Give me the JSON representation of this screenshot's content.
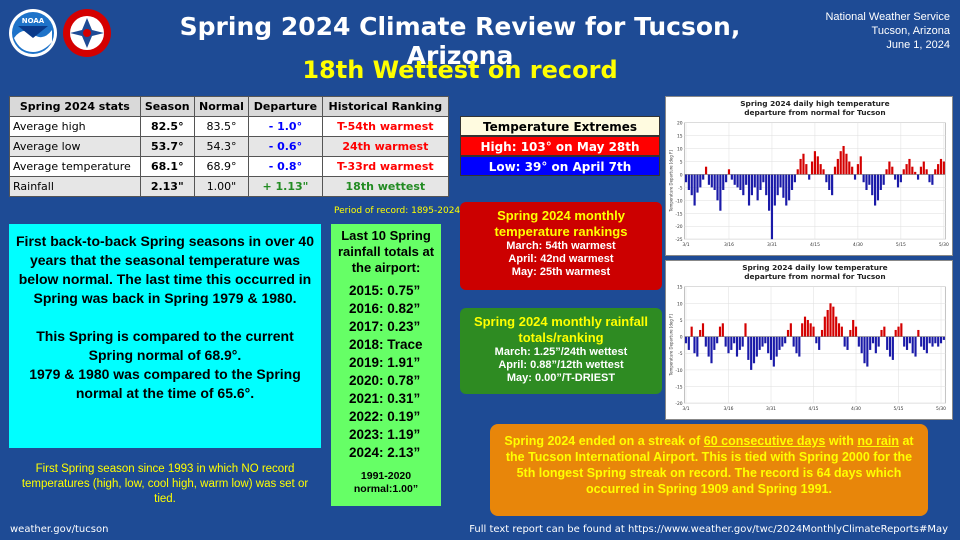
{
  "header": {
    "title": "Spring 2024 Climate Review for Tucson, Arizona",
    "subtitle": "18th Wettest on record",
    "org_line1": "National Weather Service",
    "org_line2": "Tucson, Arizona",
    "org_line3": "June 1, 2024",
    "logo1_text": "NOAA",
    "logo2_text": "NATIONAL WEATHER SERVICE"
  },
  "stats_table": {
    "headers": [
      "Spring 2024 stats",
      "Season",
      "Normal",
      "Departure",
      "Historical Ranking"
    ],
    "rows": [
      {
        "label": "Average high",
        "season": "82.5°",
        "normal": "83.5°",
        "departure": "- 1.0°",
        "ranking": "T-54th warmest"
      },
      {
        "label": "Average low",
        "season": "53.7°",
        "normal": "54.3°",
        "departure": "- 0.6°",
        "ranking": "24th warmest"
      },
      {
        "label": "Average temperature",
        "season": "68.1°",
        "normal": "68.9°",
        "departure": "- 0.8°",
        "ranking": "T-33rd warmest"
      },
      {
        "label": "Rainfall",
        "season": "2.13\"",
        "normal": "1.00\"",
        "departure": "+ 1.13\"",
        "ranking": "18th wettest"
      }
    ],
    "period": "Period of record: 1895-2024"
  },
  "cyan_box": {
    "p1": "First back-to-back Spring seasons in over 40 years that the seasonal temperature was below normal. The last time this occurred in Spring was back in Spring 1979 & 1980.",
    "p2": "This Spring is compared to the current Spring normal of 68.9°.",
    "p3": "1979 & 1980 was compared to the Spring normal at the time of 65.6°."
  },
  "yellow_note": "First Spring season since 1993 in which NO record temperatures (high, low, cool high, warm low) was set or tied.",
  "rain_box": {
    "header": "Last 10 Spring rainfall totals at the airport:",
    "items": [
      {
        "year": "2015:",
        "value": "0.75”"
      },
      {
        "year": "2016:",
        "value": "0.82”"
      },
      {
        "year": "2017:",
        "value": "0.23”"
      },
      {
        "year": "2018:",
        "value": "Trace"
      },
      {
        "year": "2019:",
        "value": "1.91”"
      },
      {
        "year": "2020:",
        "value": "0.78”"
      },
      {
        "year": "2021:",
        "value": "0.31”"
      },
      {
        "year": "2022:",
        "value": "0.19”"
      },
      {
        "year": "2023:",
        "value": "1.19”"
      },
      {
        "year": "2024:",
        "value": "2.13”"
      }
    ],
    "normal_line1": "1991-2020",
    "normal_line2": "normal:1.00”"
  },
  "extremes": {
    "header": "Temperature Extremes",
    "high": "High: 103° on May 28th",
    "low": "Low: 39° on April 7th"
  },
  "temp_rankings": {
    "header": "Spring 2024 monthly temperature rankings",
    "march": "March: 54th warmest",
    "april": "April: 42nd warmest",
    "may": "May: 25th warmest"
  },
  "rain_rankings": {
    "header": "Spring 2024 monthly rainfall totals/ranking",
    "march": "March: 1.25”/24th wettest",
    "april": "April: 0.88”/12th wettest",
    "may": "May: 0.00”/T-DRIEST"
  },
  "streak": {
    "t1": "Spring 2024 ended on a streak of ",
    "u1": "60 consecutive days",
    "t2": " with ",
    "u2": "no rain",
    "t3": " at the Tucson International Airport. This is tied with Spring 2000 for the 5th longest Spring streak on record. The record is 64 days which occurred in Spring 1909 and Spring 1991."
  },
  "footer": {
    "left": "weather.gov/tucson",
    "right": "Full text report can be found at https://www.weather.gov/twc/2024MonthlyClimateReports#May"
  },
  "colors": {
    "above": "#d40000",
    "below": "#1a1aa8"
  },
  "chart_data": [
    {
      "type": "bar",
      "title": "Spring 2024 daily high temperature departure from normal for Tucson",
      "ylabel": "Temperature Departure [deg F]",
      "ylim": [
        -25,
        20
      ],
      "yticks": [
        -25,
        -20,
        -15,
        -10,
        -5,
        0,
        5,
        10,
        15,
        20
      ],
      "xticks": [
        "3/1",
        "3/16",
        "3/31",
        "4/15",
        "4/30",
        "5/15",
        "5/30"
      ],
      "values": [
        -3,
        -6,
        -8,
        -12,
        -7,
        -5,
        -2,
        3,
        -4,
        -5,
        -6,
        -10,
        -14,
        -6,
        -3,
        2,
        -2,
        -4,
        -5,
        -6,
        -8,
        -4,
        -12,
        -8,
        -5,
        -10,
        -6,
        -3,
        -8,
        -14,
        -25,
        -12,
        -8,
        -5,
        -9,
        -12,
        -10,
        -6,
        -3,
        2,
        6,
        8,
        4,
        -2,
        5,
        9,
        7,
        4,
        2,
        -3,
        -6,
        -8,
        3,
        6,
        9,
        11,
        8,
        5,
        3,
        -2,
        4,
        7,
        -3,
        -6,
        -4,
        -8,
        -12,
        -10,
        -6,
        -4,
        2,
        5,
        3,
        -2,
        -5,
        -3,
        2,
        4,
        6,
        3,
        1,
        -2,
        3,
        5,
        2,
        -3,
        -4,
        2,
        4,
        6,
        5
      ]
    },
    {
      "type": "bar",
      "title": "Spring 2024 daily low temperature departure from normal for Tucson",
      "ylabel": "Temperature Departure [deg F]",
      "ylim": [
        -20,
        15
      ],
      "yticks": [
        -20,
        -15,
        -10,
        -5,
        0,
        5,
        10,
        15
      ],
      "xticks": [
        "3/1",
        "3/16",
        "3/31",
        "4/15",
        "4/30",
        "5/15",
        "5/30"
      ],
      "values": [
        -2,
        -4,
        3,
        -5,
        -6,
        2,
        4,
        -3,
        -6,
        -8,
        -4,
        -2,
        3,
        4,
        -3,
        -5,
        -4,
        -2,
        -6,
        -4,
        -3,
        4,
        -7,
        -10,
        -8,
        -6,
        -4,
        -3,
        -2,
        -5,
        -7,
        -9,
        -6,
        -4,
        -3,
        -2,
        2,
        4,
        -3,
        -5,
        -6,
        4,
        6,
        5,
        4,
        3,
        -2,
        -4,
        2,
        6,
        8,
        10,
        9,
        6,
        4,
        3,
        -3,
        -4,
        2,
        5,
        3,
        -3,
        -5,
        -8,
        -9,
        -4,
        -2,
        -5,
        -3,
        2,
        3,
        -4,
        -6,
        -7,
        2,
        3,
        4,
        -3,
        -4,
        -2,
        -5,
        -6,
        2,
        -3,
        -4,
        -5,
        -2,
        -3,
        -2,
        -3,
        -2,
        -1
      ]
    }
  ]
}
